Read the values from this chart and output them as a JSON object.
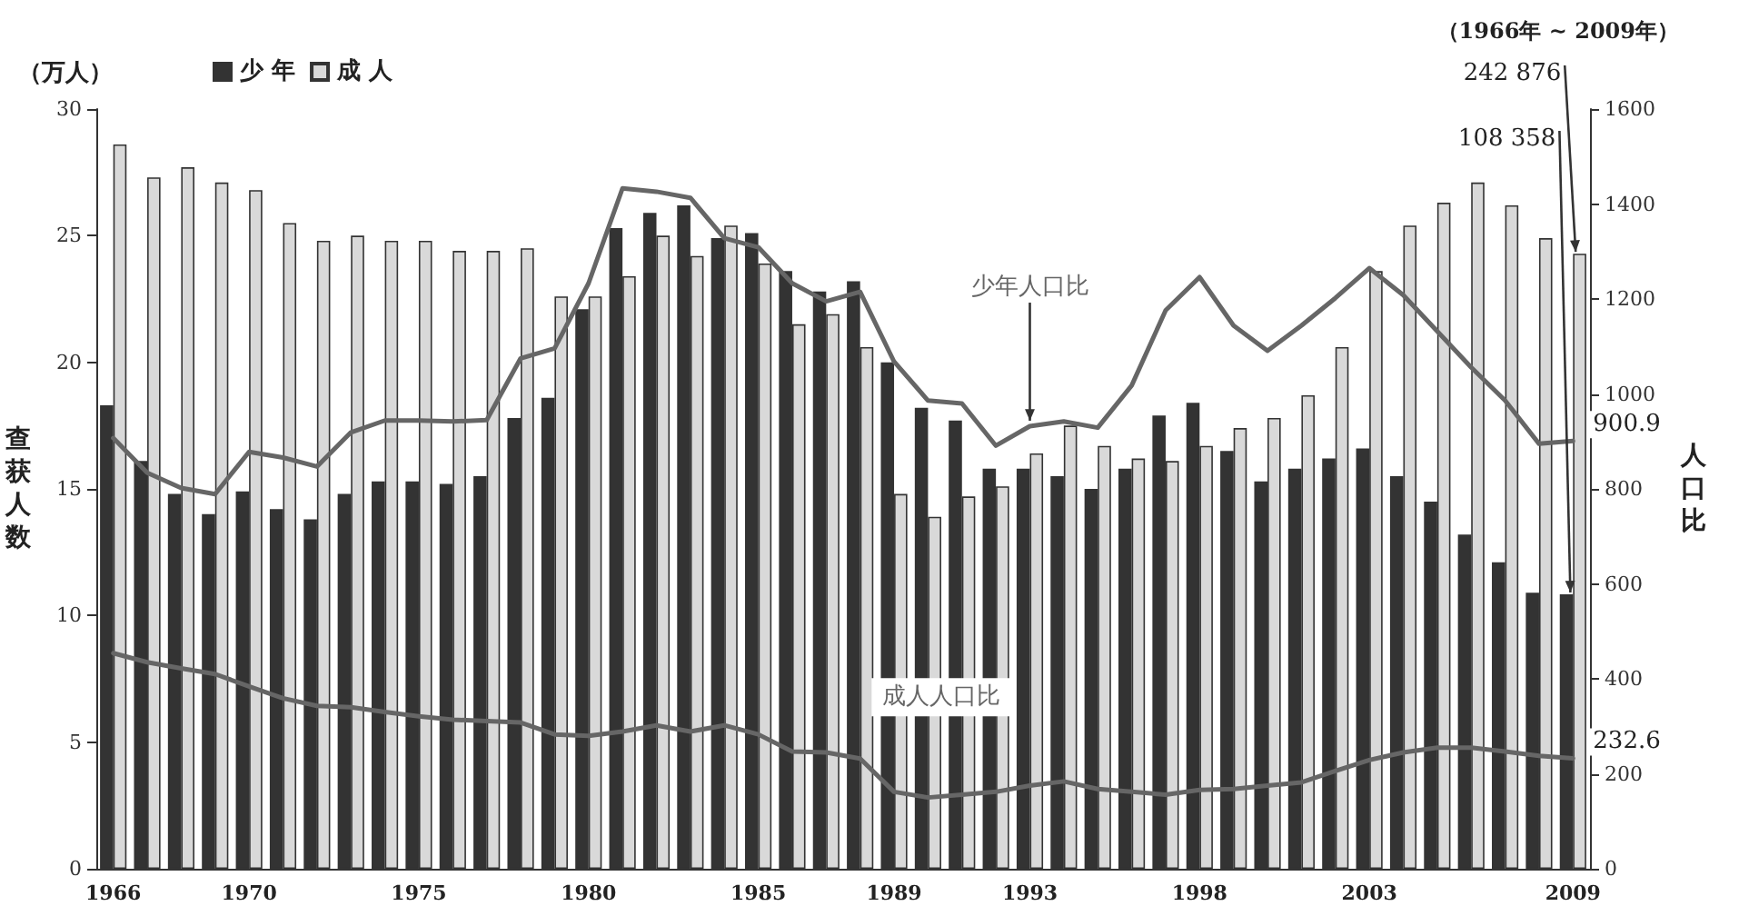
{
  "chart_data": {
    "type": "bar",
    "subtitle": "（1966年 ~ 2009年）",
    "ylabel": "查获人数",
    "y2label": "人口比",
    "annotations": [
      "（万人）",
      {
        "text": "242 876",
        "x": "2009",
        "y": 24.2876
      },
      {
        "text": "108 358",
        "x": "2009",
        "y": 10.8358
      }
    ],
    "categories": [
      "1966",
      null,
      null,
      null,
      "1970",
      null,
      null,
      null,
      null,
      "1975",
      null,
      null,
      null,
      null,
      "1980",
      null,
      null,
      null,
      null,
      "1985",
      null,
      null,
      null,
      "1989",
      null,
      null,
      null,
      "1993",
      null,
      null,
      null,
      null,
      "1998",
      null,
      null,
      null,
      null,
      "2003",
      null,
      null,
      null,
      null,
      null,
      "2009"
    ],
    "series": [
      {
        "name": "少 年",
        "color": "#333333",
        "values": [
          18.3,
          16.1,
          14.8,
          14.0,
          14.9,
          14.2,
          13.8,
          14.8,
          15.3,
          15.3,
          15.2,
          15.5,
          17.8,
          18.6,
          22.1,
          25.3,
          25.9,
          26.2,
          24.9,
          25.1,
          23.6,
          22.8,
          23.2,
          20.0,
          18.2,
          17.7,
          15.8,
          15.8,
          15.5,
          15.0,
          15.8,
          17.9,
          18.4,
          16.5,
          15.3,
          15.8,
          16.2,
          16.6,
          15.5,
          14.5,
          13.2,
          12.1,
          10.9,
          10.8358
        ]
      },
      {
        "name": "成 人",
        "color": "#d9d9d9",
        "values": [
          28.6,
          27.3,
          27.7,
          27.1,
          26.8,
          25.5,
          24.8,
          25.0,
          24.8,
          24.8,
          24.4,
          24.4,
          24.5,
          22.6,
          22.6,
          23.4,
          25.0,
          24.2,
          25.4,
          23.9,
          21.5,
          21.9,
          20.6,
          14.8,
          13.9,
          14.7,
          15.1,
          16.4,
          17.5,
          16.7,
          16.2,
          16.1,
          16.7,
          17.4,
          17.8,
          18.7,
          20.6,
          23.6,
          25.4,
          26.3,
          27.1,
          26.2,
          24.9,
          24.2876
        ]
      },
      {
        "name": "少年人口比",
        "type": "line",
        "axis": "y2",
        "color": "#666666",
        "values": [
          907,
          834,
          802,
          789,
          878,
          866,
          847,
          919,
          944,
          944,
          942,
          945,
          1075,
          1096,
          1233,
          1433,
          1426,
          1413,
          1328,
          1309,
          1233,
          1195,
          1215,
          1068,
          986,
          980,
          891,
          932,
          942,
          929,
          1018,
          1176,
          1246,
          1144,
          1091,
          1144,
          1202,
          1265,
          1208,
          1132,
          1056,
          986,
          895,
          900.9
        ],
        "value_labels": [
          null,
          null,
          null,
          null,
          null,
          null,
          null,
          null,
          null,
          null,
          null,
          null,
          null,
          null,
          null,
          null,
          null,
          null,
          null,
          null,
          null,
          null,
          null,
          null,
          null,
          null,
          null,
          null,
          null,
          null,
          null,
          null,
          null,
          null,
          null,
          null,
          null,
          null,
          null,
          null,
          null,
          null,
          null,
          "900.9"
        ]
      },
      {
        "name": "成人人口比",
        "type": "line",
        "axis": "y2",
        "color": "#666666",
        "values": [
          454,
          435,
          422,
          410,
          384,
          359,
          343,
          340,
          330,
          321,
          314,
          311,
          308,
          283,
          280,
          289,
          302,
          289,
          302,
          283,
          247,
          245,
          232,
          162,
          150,
          156,
          162,
          175,
          184,
          168,
          162,
          156,
          166,
          168,
          175,
          182,
          206,
          229,
          245,
          255,
          255,
          247,
          238,
          232.6
        ],
        "value_labels": [
          null,
          null,
          null,
          null,
          null,
          null,
          null,
          null,
          null,
          null,
          null,
          null,
          null,
          null,
          null,
          null,
          null,
          null,
          null,
          null,
          null,
          null,
          null,
          null,
          null,
          null,
          null,
          null,
          null,
          null,
          null,
          null,
          null,
          null,
          null,
          null,
          null,
          null,
          null,
          null,
          null,
          null,
          null,
          "232.6"
        ]
      }
    ],
    "ylim": [
      0,
      30
    ],
    "yticks": [
      0,
      5,
      10,
      15,
      20,
      25,
      30
    ],
    "y2lim": [
      0,
      1600
    ],
    "y2ticks": [
      0,
      200,
      400,
      600,
      800,
      1000,
      1200,
      1400,
      1600
    ],
    "legend": "top left",
    "grid": false,
    "marker": "none"
  }
}
